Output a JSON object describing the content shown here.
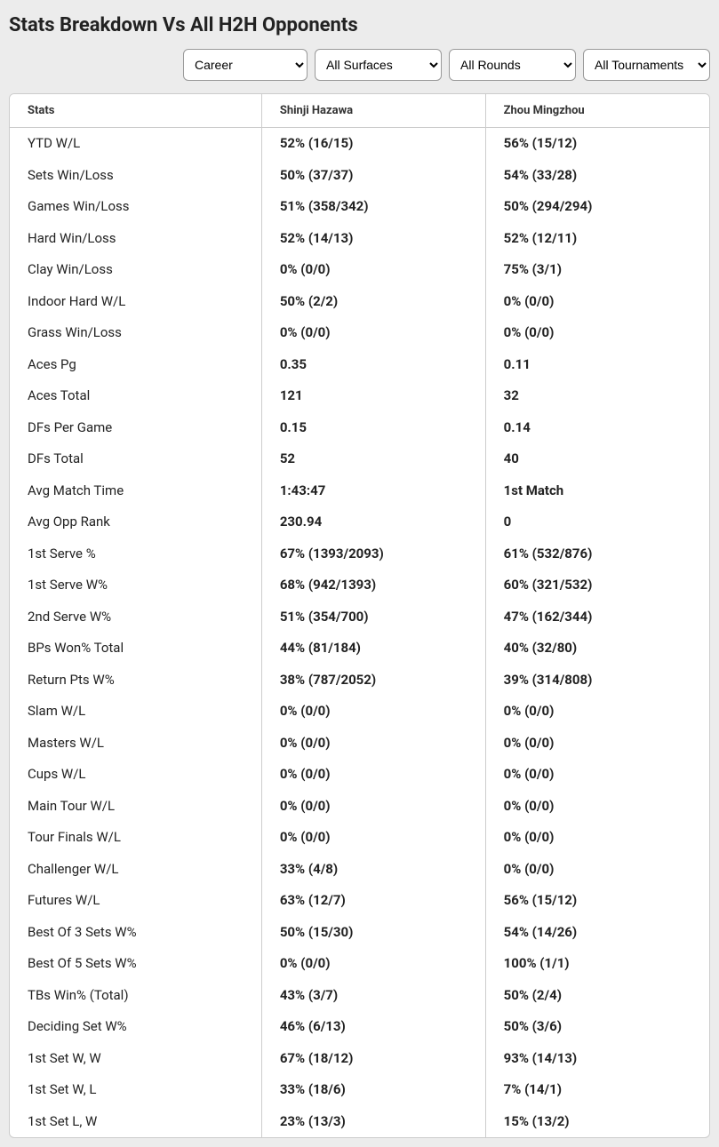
{
  "title": "Stats Breakdown Vs All H2H Opponents",
  "filters": {
    "period": {
      "selected": "Career",
      "options": [
        "Career"
      ]
    },
    "surface": {
      "selected": "All Surfaces",
      "options": [
        "All Surfaces"
      ]
    },
    "round": {
      "selected": "All Rounds",
      "options": [
        "All Rounds"
      ]
    },
    "tournament": {
      "selected": "All Tournaments",
      "options": [
        "All Tournaments"
      ]
    }
  },
  "headers": {
    "stats": "Stats",
    "player1": "Shinji Hazawa",
    "player2": "Zhou Mingzhou"
  },
  "rows": [
    {
      "stat": "YTD W/L",
      "p1": "52% (16/15)",
      "p2": "56% (15/12)"
    },
    {
      "stat": "Sets Win/Loss",
      "p1": "50% (37/37)",
      "p2": "54% (33/28)"
    },
    {
      "stat": "Games Win/Loss",
      "p1": "51% (358/342)",
      "p2": "50% (294/294)"
    },
    {
      "stat": "Hard Win/Loss",
      "p1": "52% (14/13)",
      "p2": "52% (12/11)"
    },
    {
      "stat": "Clay Win/Loss",
      "p1": "0% (0/0)",
      "p2": "75% (3/1)"
    },
    {
      "stat": "Indoor Hard W/L",
      "p1": "50% (2/2)",
      "p2": "0% (0/0)"
    },
    {
      "stat": "Grass Win/Loss",
      "p1": "0% (0/0)",
      "p2": "0% (0/0)"
    },
    {
      "stat": "Aces Pg",
      "p1": "0.35",
      "p2": "0.11"
    },
    {
      "stat": "Aces Total",
      "p1": "121",
      "p2": "32"
    },
    {
      "stat": "DFs Per Game",
      "p1": "0.15",
      "p2": "0.14"
    },
    {
      "stat": "DFs Total",
      "p1": "52",
      "p2": "40"
    },
    {
      "stat": "Avg Match Time",
      "p1": "1:43:47",
      "p2": "1st Match"
    },
    {
      "stat": "Avg Opp Rank",
      "p1": "230.94",
      "p2": "0"
    },
    {
      "stat": "1st Serve %",
      "p1": "67% (1393/2093)",
      "p2": "61% (532/876)"
    },
    {
      "stat": "1st Serve W%",
      "p1": "68% (942/1393)",
      "p2": "60% (321/532)"
    },
    {
      "stat": "2nd Serve W%",
      "p1": "51% (354/700)",
      "p2": "47% (162/344)"
    },
    {
      "stat": "BPs Won% Total",
      "p1": "44% (81/184)",
      "p2": "40% (32/80)"
    },
    {
      "stat": "Return Pts W%",
      "p1": "38% (787/2052)",
      "p2": "39% (314/808)"
    },
    {
      "stat": "Slam W/L",
      "p1": "0% (0/0)",
      "p2": "0% (0/0)"
    },
    {
      "stat": "Masters W/L",
      "p1": "0% (0/0)",
      "p2": "0% (0/0)"
    },
    {
      "stat": "Cups W/L",
      "p1": "0% (0/0)",
      "p2": "0% (0/0)"
    },
    {
      "stat": "Main Tour W/L",
      "p1": "0% (0/0)",
      "p2": "0% (0/0)"
    },
    {
      "stat": "Tour Finals W/L",
      "p1": "0% (0/0)",
      "p2": "0% (0/0)"
    },
    {
      "stat": "Challenger W/L",
      "p1": "33% (4/8)",
      "p2": "0% (0/0)"
    },
    {
      "stat": "Futures W/L",
      "p1": "63% (12/7)",
      "p2": "56% (15/12)"
    },
    {
      "stat": "Best Of 3 Sets W%",
      "p1": "50% (15/30)",
      "p2": "54% (14/26)"
    },
    {
      "stat": "Best Of 5 Sets W%",
      "p1": "0% (0/0)",
      "p2": "100% (1/1)"
    },
    {
      "stat": "TBs Win% (Total)",
      "p1": "43% (3/7)",
      "p2": "50% (2/4)"
    },
    {
      "stat": "Deciding Set W%",
      "p1": "46% (6/13)",
      "p2": "50% (3/6)"
    },
    {
      "stat": "1st Set W, W",
      "p1": "67% (18/12)",
      "p2": "93% (14/13)"
    },
    {
      "stat": "1st Set W, L",
      "p1": "33% (18/6)",
      "p2": "7% (14/1)"
    },
    {
      "stat": "1st Set L, W",
      "p1": "23% (13/3)",
      "p2": "15% (13/2)"
    }
  ]
}
